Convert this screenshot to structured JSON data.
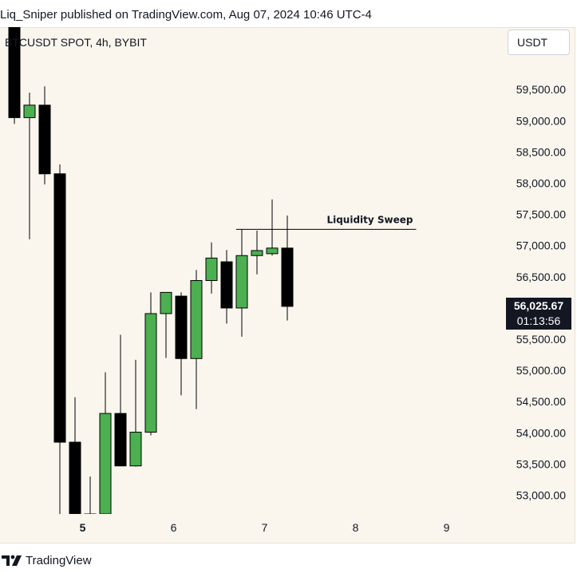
{
  "header": {
    "publish_line": "Liq_Sniper published on TradingView.com, Aug 07, 2024 10:46 UTC-4"
  },
  "symbol": {
    "title": "BTCUSDT SPOT, 4h, BYBIT"
  },
  "currency_button": {
    "label": "USDT"
  },
  "price_tag": {
    "price": "56,025.67",
    "countdown": "01:13:56"
  },
  "footer": {
    "brand": "TradingView"
  },
  "colors": {
    "up": "#4caf50",
    "down": "#000000",
    "background": "#faf6ee"
  },
  "chart_data": {
    "type": "candlestick",
    "timeframe": "4h",
    "symbol": "BTCUSDT",
    "ylim": [
      52700,
      60500
    ],
    "y_ticks": [
      53000,
      53500,
      54000,
      54500,
      55000,
      55500,
      56000,
      56500,
      57000,
      57500,
      58000,
      58500,
      59000,
      59500
    ],
    "y_tick_labels": [
      "53,000.00",
      "53,500.00",
      "54,000.00",
      "54,500.00",
      "55,000.00",
      "55,500.00",
      "56,000.00",
      "56,500.00",
      "57,000.00",
      "57,500.00",
      "58,000.00",
      "58,500.00",
      "59,000.00",
      "59,500.00"
    ],
    "x_ticks": [
      {
        "index": 4.5,
        "label": "5",
        "bold": true
      },
      {
        "index": 10.5,
        "label": "6",
        "bold": false
      },
      {
        "index": 16.5,
        "label": "7",
        "bold": false
      },
      {
        "index": 22.5,
        "label": "8",
        "bold": false
      },
      {
        "index": 28.5,
        "label": "9",
        "bold": false
      }
    ],
    "candles": [
      {
        "o": 60500,
        "h": 60500,
        "l": 58950,
        "c": 59050
      },
      {
        "o": 59050,
        "h": 59450,
        "l": 57100,
        "c": 59250
      },
      {
        "o": 59250,
        "h": 59550,
        "l": 57980,
        "c": 58150
      },
      {
        "o": 58150,
        "h": 58300,
        "l": 52700,
        "c": 53850
      },
      {
        "o": 53850,
        "h": 54570,
        "l": 52700,
        "c": 52700
      },
      {
        "o": 52700,
        "h": 53300,
        "l": 52700,
        "c": 52700
      },
      {
        "o": 52700,
        "h": 54970,
        "l": 52700,
        "c": 54310
      },
      {
        "o": 54310,
        "h": 55570,
        "l": 53470,
        "c": 53470
      },
      {
        "o": 53470,
        "h": 55170,
        "l": 53460,
        "c": 54010
      },
      {
        "o": 54010,
        "h": 56250,
        "l": 53960,
        "c": 55910
      },
      {
        "o": 55910,
        "h": 56200,
        "l": 55200,
        "c": 56250
      },
      {
        "o": 56190,
        "h": 56250,
        "l": 54600,
        "c": 55190
      },
      {
        "o": 55190,
        "h": 56610,
        "l": 54380,
        "c": 56440
      },
      {
        "o": 56440,
        "h": 57050,
        "l": 56230,
        "c": 56800
      },
      {
        "o": 56740,
        "h": 56930,
        "l": 55750,
        "c": 56000
      },
      {
        "o": 56000,
        "h": 57260,
        "l": 55540,
        "c": 56840
      },
      {
        "o": 56840,
        "h": 57240,
        "l": 56540,
        "c": 56920
      },
      {
        "o": 56870,
        "h": 57740,
        "l": 56840,
        "c": 56960
      },
      {
        "o": 56960,
        "h": 57480,
        "l": 55800,
        "c": 56026
      }
    ],
    "annotations": [
      {
        "text": "Liquidity Sweep",
        "price": 57260,
        "from_index": 15,
        "to_index": 26.5
      }
    ],
    "last_price": 56025.67,
    "grid": false
  }
}
